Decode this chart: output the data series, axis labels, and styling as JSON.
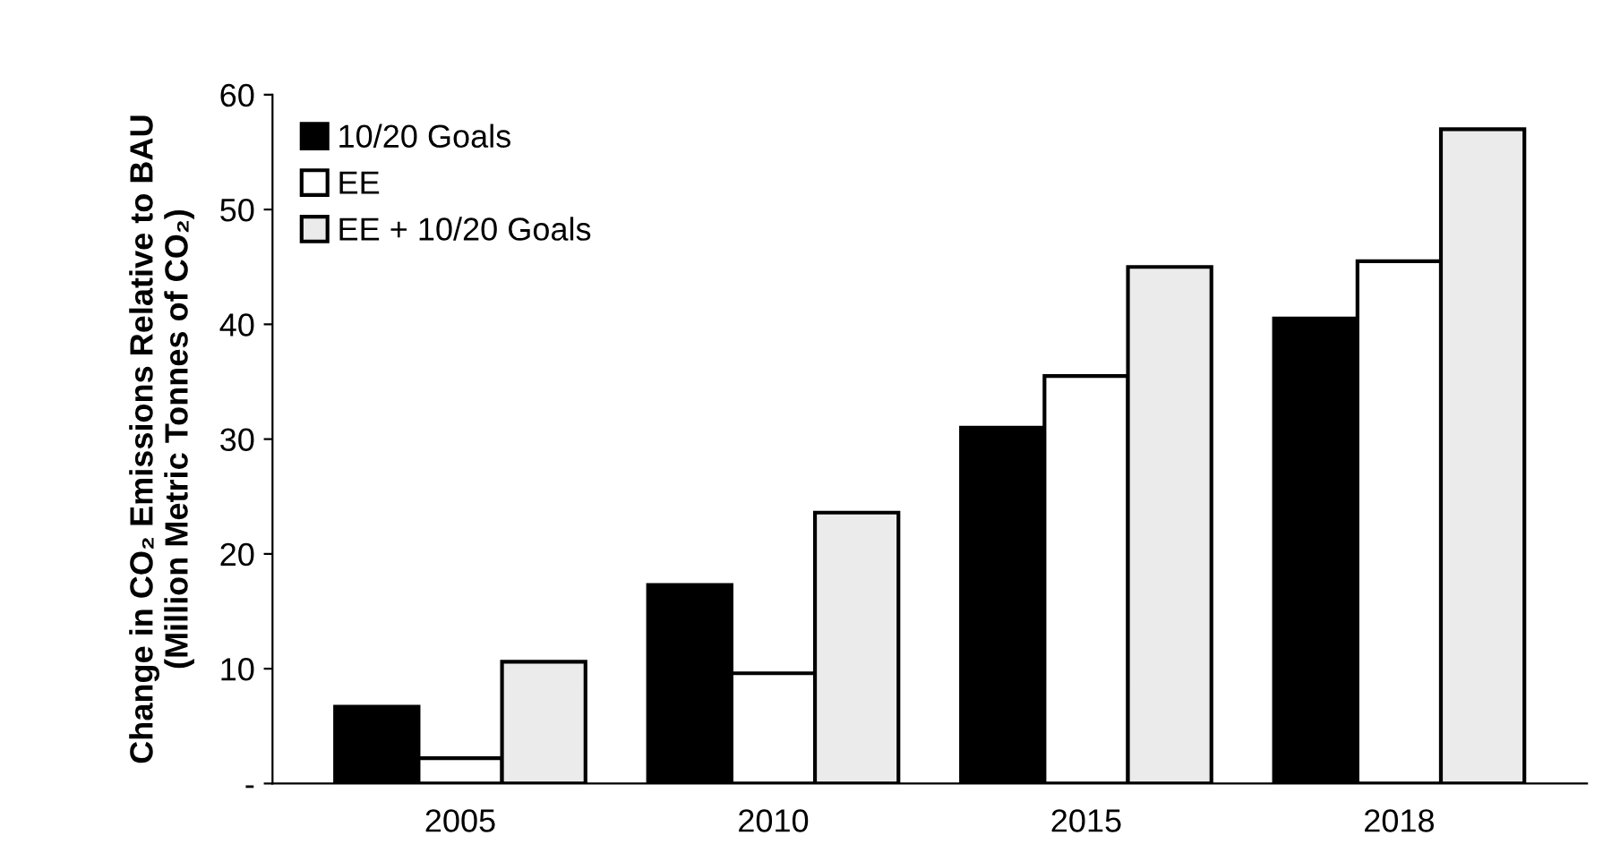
{
  "chart_data": {
    "type": "bar",
    "ylabel": "Change in CO₂ Emissions Relative to BAU\n(Million Metric Tonnes of CO₂)",
    "categories": [
      "2005",
      "2010",
      "2015",
      "2018"
    ],
    "series": [
      {
        "name": "10/20 Goals",
        "color": "#000000",
        "values": [
          6.7,
          17.3,
          31,
          40.5
        ]
      },
      {
        "name": "EE",
        "color": "#ffffff",
        "values": [
          2.2,
          9.6,
          35.5,
          45.5
        ]
      },
      {
        "name": "EE + 10/20 Goals",
        "color": "#ebebeb",
        "values": [
          10.6,
          23.6,
          45,
          57
        ]
      }
    ],
    "ylim": [
      0,
      60
    ],
    "yticks": [
      {
        "value": 0,
        "label": "-"
      },
      10,
      20,
      30,
      40,
      50,
      60
    ],
    "grid": false,
    "legend": "top left"
  }
}
